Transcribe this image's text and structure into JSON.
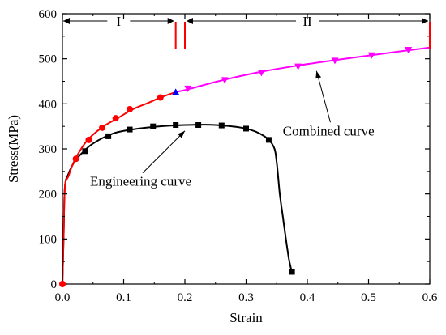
{
  "chart_data": {
    "type": "line",
    "xlabel": "Strain",
    "ylabel": "Stress(MPa)",
    "xlim": [
      0.0,
      0.6
    ],
    "ylim": [
      0,
      600
    ],
    "x_ticks": [
      "0.0",
      "0.1",
      "0.2",
      "0.3",
      "0.4",
      "0.5",
      "0.6"
    ],
    "y_ticks": [
      "0",
      "100",
      "200",
      "300",
      "400",
      "500",
      "600"
    ],
    "grid": false,
    "colors": {
      "engineering": "#000000",
      "combined_red": "#ff0000",
      "combined_magenta": "#ff00ff",
      "transition_marker": "#0000ff",
      "region_marker": "#ff0000"
    },
    "series": [
      {
        "key": "engineering",
        "line": [
          [
            0.0,
            0
          ],
          [
            0.002,
            110
          ],
          [
            0.004,
            215
          ],
          [
            0.01,
            245
          ],
          [
            0.02,
            272
          ],
          [
            0.035,
            295
          ],
          [
            0.05,
            312
          ],
          [
            0.075,
            330
          ],
          [
            0.1,
            340
          ],
          [
            0.15,
            349
          ],
          [
            0.2,
            353
          ],
          [
            0.25,
            353
          ],
          [
            0.3,
            345
          ],
          [
            0.33,
            328
          ],
          [
            0.345,
            305
          ],
          [
            0.35,
            270
          ],
          [
            0.355,
            200
          ],
          [
            0.36,
            150
          ],
          [
            0.365,
            100
          ],
          [
            0.37,
            55
          ],
          [
            0.375,
            25
          ]
        ],
        "markers": [
          [
            0.037,
            295
          ],
          [
            0.075,
            328
          ],
          [
            0.11,
            343
          ],
          [
            0.148,
            350
          ],
          [
            0.185,
            353
          ],
          [
            0.222,
            353
          ],
          [
            0.26,
            352
          ],
          [
            0.3,
            345
          ],
          [
            0.337,
            320
          ],
          [
            0.375,
            27
          ]
        ]
      },
      {
        "key": "combined_red",
        "line": [
          [
            0.0,
            0
          ],
          [
            0.002,
            110
          ],
          [
            0.004,
            215
          ],
          [
            0.01,
            240
          ],
          [
            0.02,
            275
          ],
          [
            0.04,
            318
          ],
          [
            0.065,
            348
          ],
          [
            0.09,
            368
          ],
          [
            0.115,
            388
          ],
          [
            0.14,
            402
          ],
          [
            0.16,
            414
          ],
          [
            0.185,
            426
          ]
        ],
        "markers": [
          [
            0.0,
            0
          ],
          [
            0.022,
            278
          ],
          [
            0.043,
            320
          ],
          [
            0.065,
            347
          ],
          [
            0.087,
            368
          ],
          [
            0.11,
            388
          ],
          [
            0.16,
            414
          ]
        ]
      },
      {
        "key": "combined_magenta",
        "line": [
          [
            0.185,
            426
          ],
          [
            0.21,
            434
          ],
          [
            0.26,
            452
          ],
          [
            0.32,
            470
          ],
          [
            0.38,
            484
          ],
          [
            0.44,
            496
          ],
          [
            0.5,
            507
          ],
          [
            0.56,
            518
          ],
          [
            0.6,
            525
          ]
        ],
        "markers": [
          [
            0.205,
            434
          ],
          [
            0.265,
            453
          ],
          [
            0.325,
            469
          ],
          [
            0.385,
            483
          ],
          [
            0.445,
            496
          ],
          [
            0.505,
            508
          ],
          [
            0.565,
            520
          ]
        ]
      }
    ],
    "transition_marker": [
      0.185,
      426
    ],
    "regions": [
      {
        "label": "I",
        "x_start": 0.0,
        "x_end": 0.185,
        "y": 555
      },
      {
        "label": "II",
        "x_start": 0.2,
        "x_end": 0.6,
        "y": 555
      }
    ],
    "region_boundaries": [
      0.185,
      0.2,
      0.6
    ],
    "annotations": [
      {
        "text": "Combined curve",
        "text_x": 0.36,
        "text_y": 330,
        "arrow_to": [
          0.415,
          473
        ]
      },
      {
        "text": "Engineering curve",
        "text_x": 0.045,
        "text_y": 218,
        "arrow_to": [
          0.2,
          340
        ]
      }
    ]
  }
}
